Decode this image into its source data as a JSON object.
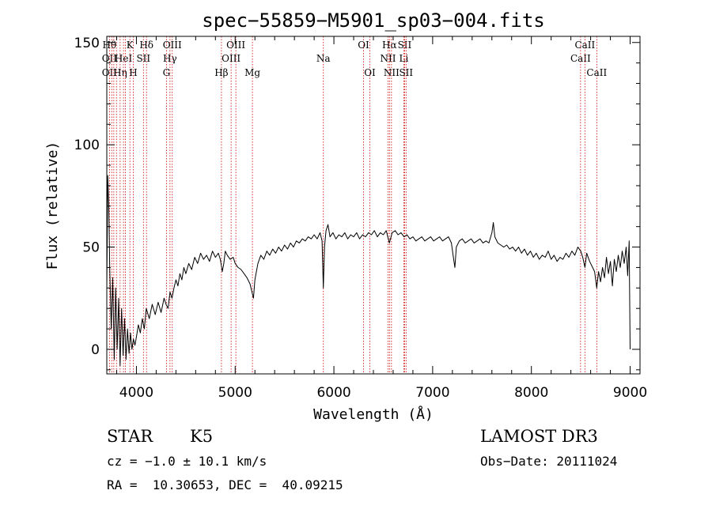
{
  "chart_data": {
    "type": "line",
    "title": "spec−55859−M5901_sp03−004.fits",
    "xlabel": "Wavelength (Å)",
    "ylabel": "Flux (relative)",
    "xlim": [
      3700,
      9100
    ],
    "ylim": [
      -12,
      153
    ],
    "xticks": [
      4000,
      5000,
      6000,
      7000,
      8000,
      9000
    ],
    "yticks": [
      0,
      50,
      100,
      150
    ],
    "grid": false,
    "series": [
      {
        "line_color": "#000000",
        "points": [
          [
            3700,
            30
          ],
          [
            3710,
            85
          ],
          [
            3720,
            70
          ],
          [
            3730,
            40
          ],
          [
            3745,
            10
          ],
          [
            3760,
            35
          ],
          [
            3775,
            -5
          ],
          [
            3790,
            30
          ],
          [
            3805,
            0
          ],
          [
            3820,
            25
          ],
          [
            3835,
            -8
          ],
          [
            3850,
            20
          ],
          [
            3865,
            -3
          ],
          [
            3880,
            15
          ],
          [
            3895,
            -5
          ],
          [
            3910,
            10
          ],
          [
            3925,
            -2
          ],
          [
            3940,
            8
          ],
          [
            3955,
            0
          ],
          [
            3970,
            5
          ],
          [
            3985,
            2
          ],
          [
            4000,
            6
          ],
          [
            4020,
            12
          ],
          [
            4040,
            8
          ],
          [
            4060,
            15
          ],
          [
            4080,
            10
          ],
          [
            4100,
            20
          ],
          [
            4130,
            15
          ],
          [
            4160,
            22
          ],
          [
            4190,
            17
          ],
          [
            4220,
            23
          ],
          [
            4250,
            18
          ],
          [
            4280,
            25
          ],
          [
            4300,
            22
          ],
          [
            4320,
            20
          ],
          [
            4340,
            28
          ],
          [
            4360,
            25
          ],
          [
            4380,
            30
          ],
          [
            4400,
            34
          ],
          [
            4420,
            31
          ],
          [
            4440,
            37
          ],
          [
            4460,
            34
          ],
          [
            4480,
            40
          ],
          [
            4500,
            37
          ],
          [
            4530,
            42
          ],
          [
            4560,
            39
          ],
          [
            4590,
            45
          ],
          [
            4620,
            42
          ],
          [
            4650,
            47
          ],
          [
            4680,
            44
          ],
          [
            4710,
            46
          ],
          [
            4740,
            43
          ],
          [
            4770,
            48
          ],
          [
            4800,
            45
          ],
          [
            4830,
            47
          ],
          [
            4850,
            44
          ],
          [
            4870,
            38
          ],
          [
            4885,
            42
          ],
          [
            4900,
            48
          ],
          [
            4920,
            46
          ],
          [
            4950,
            44
          ],
          [
            4980,
            45
          ],
          [
            5000,
            42
          ],
          [
            5030,
            40
          ],
          [
            5060,
            39
          ],
          [
            5090,
            37
          ],
          [
            5120,
            35
          ],
          [
            5150,
            32
          ],
          [
            5170,
            28
          ],
          [
            5185,
            25
          ],
          [
            5200,
            34
          ],
          [
            5230,
            42
          ],
          [
            5260,
            46
          ],
          [
            5290,
            44
          ],
          [
            5320,
            48
          ],
          [
            5350,
            46
          ],
          [
            5380,
            49
          ],
          [
            5410,
            47
          ],
          [
            5440,
            50
          ],
          [
            5470,
            48
          ],
          [
            5500,
            51
          ],
          [
            5530,
            49
          ],
          [
            5560,
            52
          ],
          [
            5590,
            50
          ],
          [
            5620,
            53
          ],
          [
            5650,
            52
          ],
          [
            5680,
            54
          ],
          [
            5710,
            53
          ],
          [
            5740,
            55
          ],
          [
            5770,
            54
          ],
          [
            5800,
            56
          ],
          [
            5830,
            54
          ],
          [
            5860,
            57
          ],
          [
            5880,
            53
          ],
          [
            5893,
            30
          ],
          [
            5905,
            50
          ],
          [
            5920,
            58
          ],
          [
            5940,
            61
          ],
          [
            5960,
            55
          ],
          [
            5990,
            57
          ],
          [
            6020,
            54
          ],
          [
            6050,
            56
          ],
          [
            6080,
            55
          ],
          [
            6110,
            57
          ],
          [
            6140,
            54
          ],
          [
            6170,
            56
          ],
          [
            6200,
            55
          ],
          [
            6230,
            57
          ],
          [
            6260,
            54
          ],
          [
            6290,
            56
          ],
          [
            6320,
            55
          ],
          [
            6350,
            57
          ],
          [
            6380,
            56
          ],
          [
            6410,
            58
          ],
          [
            6440,
            55
          ],
          [
            6470,
            57
          ],
          [
            6500,
            56
          ],
          [
            6530,
            58
          ],
          [
            6562,
            52
          ],
          [
            6590,
            57
          ],
          [
            6620,
            58
          ],
          [
            6650,
            56
          ],
          [
            6680,
            57
          ],
          [
            6710,
            55
          ],
          [
            6740,
            56
          ],
          [
            6770,
            54
          ],
          [
            6800,
            55
          ],
          [
            6830,
            53
          ],
          [
            6860,
            54
          ],
          [
            6890,
            55
          ],
          [
            6920,
            53
          ],
          [
            6950,
            54
          ],
          [
            6980,
            55
          ],
          [
            7010,
            53
          ],
          [
            7040,
            54
          ],
          [
            7070,
            55
          ],
          [
            7100,
            53
          ],
          [
            7130,
            54
          ],
          [
            7160,
            55
          ],
          [
            7190,
            52
          ],
          [
            7210,
            45
          ],
          [
            7225,
            40
          ],
          [
            7240,
            50
          ],
          [
            7270,
            53
          ],
          [
            7300,
            54
          ],
          [
            7330,
            52
          ],
          [
            7360,
            53
          ],
          [
            7390,
            54
          ],
          [
            7420,
            52
          ],
          [
            7450,
            53
          ],
          [
            7480,
            54
          ],
          [
            7510,
            52
          ],
          [
            7540,
            53
          ],
          [
            7570,
            52
          ],
          [
            7600,
            57
          ],
          [
            7615,
            62
          ],
          [
            7630,
            55
          ],
          [
            7660,
            52
          ],
          [
            7690,
            51
          ],
          [
            7720,
            50
          ],
          [
            7750,
            51
          ],
          [
            7780,
            49
          ],
          [
            7810,
            50
          ],
          [
            7840,
            48
          ],
          [
            7870,
            50
          ],
          [
            7900,
            47
          ],
          [
            7930,
            49
          ],
          [
            7960,
            46
          ],
          [
            7990,
            48
          ],
          [
            8020,
            45
          ],
          [
            8050,
            47
          ],
          [
            8080,
            44
          ],
          [
            8110,
            46
          ],
          [
            8140,
            45
          ],
          [
            8170,
            48
          ],
          [
            8200,
            44
          ],
          [
            8230,
            46
          ],
          [
            8260,
            43
          ],
          [
            8290,
            45
          ],
          [
            8320,
            44
          ],
          [
            8350,
            47
          ],
          [
            8380,
            45
          ],
          [
            8410,
            48
          ],
          [
            8440,
            46
          ],
          [
            8470,
            50
          ],
          [
            8500,
            48
          ],
          [
            8520,
            45
          ],
          [
            8542,
            40
          ],
          [
            8560,
            47
          ],
          [
            8590,
            43
          ],
          [
            8620,
            40
          ],
          [
            8640,
            38
          ],
          [
            8662,
            30
          ],
          [
            8680,
            38
          ],
          [
            8700,
            33
          ],
          [
            8720,
            40
          ],
          [
            8740,
            35
          ],
          [
            8760,
            45
          ],
          [
            8780,
            37
          ],
          [
            8800,
            43
          ],
          [
            8820,
            31
          ],
          [
            8840,
            44
          ],
          [
            8860,
            38
          ],
          [
            8880,
            46
          ],
          [
            8900,
            40
          ],
          [
            8920,
            48
          ],
          [
            8940,
            42
          ],
          [
            8960,
            50
          ],
          [
            8975,
            36
          ],
          [
            8990,
            53
          ],
          [
            9000,
            0
          ]
        ]
      }
    ],
    "line_markers": [
      {
        "wl": 3727,
        "top": "Hθ",
        "middle": "OII",
        "bottom": "OII"
      },
      {
        "wl": 3750,
        "top": "",
        "middle": "",
        "bottom": ""
      },
      {
        "wl": 3771,
        "top": "",
        "middle": "",
        "bottom": ""
      },
      {
        "wl": 3798,
        "top": "",
        "middle": "",
        "bottom": ""
      },
      {
        "wl": 3835,
        "top": "",
        "middle": "",
        "bottom": "Hη"
      },
      {
        "wl": 3869,
        "top": "",
        "middle": "HeI",
        "bottom": ""
      },
      {
        "wl": 3889,
        "top": "",
        "middle": "",
        "bottom": ""
      },
      {
        "wl": 3934,
        "top": "K",
        "middle": "",
        "bottom": ""
      },
      {
        "wl": 3968,
        "top": "",
        "middle": "",
        "bottom": "H"
      },
      {
        "wl": 4071,
        "top": "",
        "middle": "SII",
        "bottom": ""
      },
      {
        "wl": 4102,
        "top": "Hδ",
        "middle": "",
        "bottom": ""
      },
      {
        "wl": 4304,
        "top": "",
        "middle": "",
        "bottom": "G"
      },
      {
        "wl": 4340,
        "top": "",
        "middle": "Hγ",
        "bottom": ""
      },
      {
        "wl": 4363,
        "top": "OIII",
        "middle": "",
        "bottom": ""
      },
      {
        "wl": 4861,
        "top": "",
        "middle": "",
        "bottom": "Hβ"
      },
      {
        "wl": 4959,
        "top": "",
        "middle": "OIII",
        "bottom": ""
      },
      {
        "wl": 5007,
        "top": "OIII",
        "middle": "",
        "bottom": ""
      },
      {
        "wl": 5175,
        "top": "",
        "middle": "",
        "bottom": "Mg"
      },
      {
        "wl": 5893,
        "top": "",
        "middle": "Na",
        "bottom": ""
      },
      {
        "wl": 6300,
        "top": "OI",
        "middle": "",
        "bottom": ""
      },
      {
        "wl": 6364,
        "top": "",
        "middle": "",
        "bottom": "OI"
      },
      {
        "wl": 6548,
        "top": "",
        "middle": "NII",
        "bottom": ""
      },
      {
        "wl": 6563,
        "top": "Hα",
        "middle": "",
        "bottom": ""
      },
      {
        "wl": 6583,
        "top": "",
        "middle": "",
        "bottom": "NII"
      },
      {
        "wl": 6708,
        "top": "",
        "middle": "Li",
        "bottom": ""
      },
      {
        "wl": 6716,
        "top": "SII",
        "middle": "",
        "bottom": ""
      },
      {
        "wl": 6731,
        "top": "",
        "middle": "",
        "bottom": "SII"
      },
      {
        "wl": 8498,
        "top": "",
        "middle": "CaII",
        "bottom": ""
      },
      {
        "wl": 8542,
        "top": "CaII",
        "middle": "",
        "bottom": ""
      },
      {
        "wl": 8662,
        "top": "",
        "middle": "",
        "bottom": "CaII"
      }
    ]
  },
  "info": {
    "class": "STAR",
    "subclass": "K5",
    "survey": "LAMOST DR3",
    "cz": "cz = −1.0 ± 10.1 km/s",
    "obs_date": "Obs−Date: 20111024",
    "coords": "RA =  10.30653, DEC =  40.09215"
  },
  "colors": {
    "axes": "#000000",
    "spectrum": "#000000",
    "line_markers": "#cc0000"
  }
}
